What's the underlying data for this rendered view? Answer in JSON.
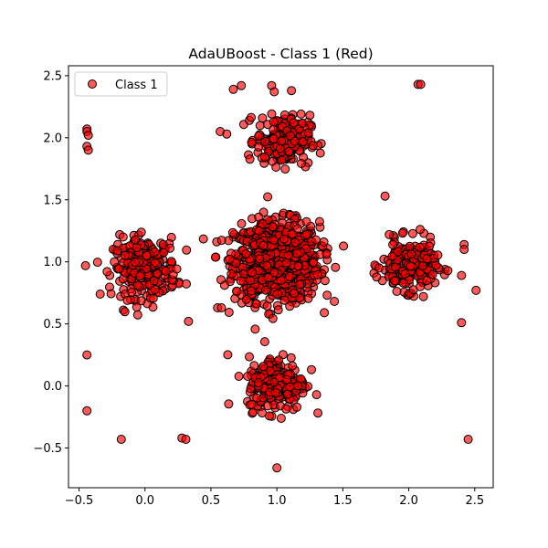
{
  "chart_data": {
    "type": "scatter",
    "title": "AdaUBoost - Class 1 (Red)",
    "xlabel": "",
    "ylabel": "",
    "xlim": [
      -0.58,
      2.64
    ],
    "ylim": [
      -0.82,
      2.58
    ],
    "xticks": [
      -0.5,
      0.0,
      0.5,
      1.0,
      1.5,
      2.0,
      2.5
    ],
    "xtick_labels": [
      "−0.5",
      "0.0",
      "0.5",
      "1.0",
      "1.5",
      "2.0",
      "2.5"
    ],
    "yticks": [
      -0.5,
      0.0,
      0.5,
      1.0,
      1.5,
      2.0,
      2.5
    ],
    "ytick_labels": [
      "−0.5",
      "0.0",
      "0.5",
      "1.0",
      "1.5",
      "2.0",
      "2.5"
    ],
    "grid": false,
    "legend": {
      "location": "top-left",
      "entries": [
        "Class 1"
      ]
    },
    "colors": {
      "marker_fill": "#ff0000",
      "marker_edge": "#000000",
      "marker_alpha": 0.65
    },
    "series": [
      {
        "name": "Class 1",
        "clusters": [
          {
            "center": [
              1.0,
              1.0
            ],
            "spread": 0.16,
            "count": 900
          },
          {
            "center": [
              0.0,
              0.95
            ],
            "spread": 0.12,
            "count": 260
          },
          {
            "center": [
              2.0,
              0.97
            ],
            "spread": 0.1,
            "count": 240
          },
          {
            "center": [
              1.05,
              1.98
            ],
            "spread": 0.1,
            "count": 230
          },
          {
            "center": [
              1.0,
              0.02
            ],
            "spread": 0.11,
            "count": 240
          }
        ],
        "outliers": [
          [
            -0.44,
            2.07
          ],
          [
            -0.44,
            2.05
          ],
          [
            -0.43,
            2.02
          ],
          [
            -0.44,
            1.93
          ],
          [
            -0.43,
            1.9
          ],
          [
            -0.44,
            0.25
          ],
          [
            -0.44,
            -0.2
          ],
          [
            -0.18,
            -0.43
          ],
          [
            0.28,
            -0.42
          ],
          [
            0.31,
            -0.43
          ],
          [
            1.0,
            -0.66
          ],
          [
            2.07,
            2.43
          ],
          [
            2.09,
            2.43
          ],
          [
            2.45,
            -0.43
          ],
          [
            2.42,
            1.14
          ],
          [
            2.42,
            1.1
          ],
          [
            2.4,
            0.89
          ],
          [
            2.51,
            0.77
          ],
          [
            2.4,
            0.51
          ],
          [
            0.73,
            2.42
          ],
          [
            0.67,
            2.39
          ],
          [
            0.96,
            2.42
          ],
          [
            0.98,
            2.37
          ],
          [
            1.11,
            2.38
          ],
          [
            0.57,
            2.05
          ],
          [
            0.62,
            2.03
          ],
          [
            1.82,
            1.53
          ],
          [
            0.55,
            0.63
          ],
          [
            0.58,
            0.63
          ],
          [
            0.33,
            0.52
          ]
        ]
      }
    ]
  }
}
